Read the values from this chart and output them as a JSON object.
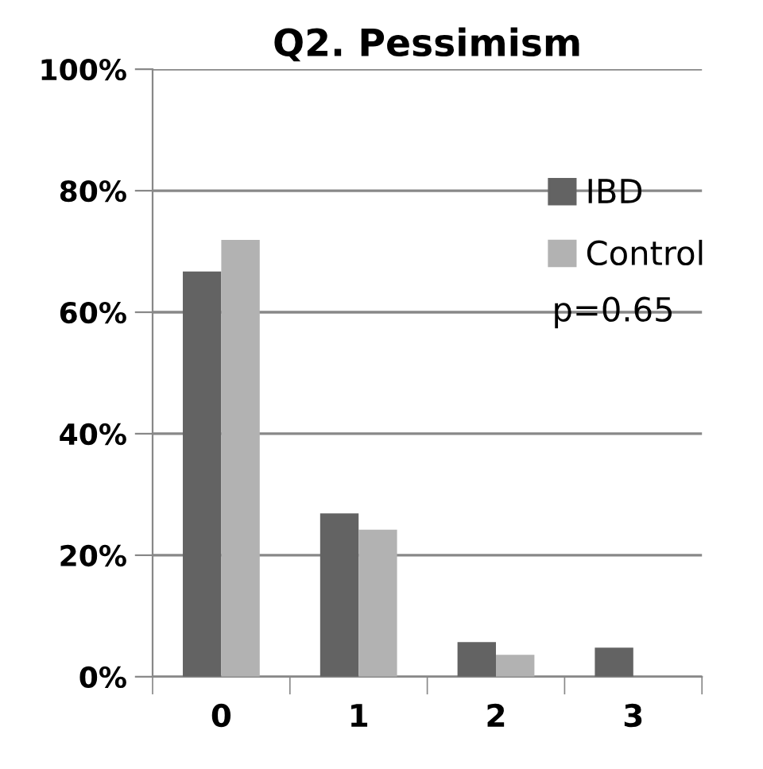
{
  "chart_data": {
    "type": "bar",
    "title": "Q2. Pessimism",
    "categories": [
      "0",
      "1",
      "2",
      "3"
    ],
    "series": [
      {
        "name": "IBD",
        "color": "#636363",
        "values": [
          66.7,
          26.9,
          5.7,
          4.8
        ]
      },
      {
        "name": "Control",
        "color": "#b2b2b2",
        "values": [
          71.9,
          24.2,
          3.6,
          0
        ]
      }
    ],
    "ylim": [
      0,
      100
    ],
    "yticks": [
      {
        "value": 0,
        "label": "0%"
      },
      {
        "value": 20,
        "label": "20%"
      },
      {
        "value": 40,
        "label": "40%"
      },
      {
        "value": 60,
        "label": "60%"
      },
      {
        "value": 80,
        "label": "80%"
      },
      {
        "value": 100,
        "label": "100%"
      }
    ],
    "grid": "y",
    "legend": "right",
    "annotations": [
      "p=0.65"
    ]
  }
}
